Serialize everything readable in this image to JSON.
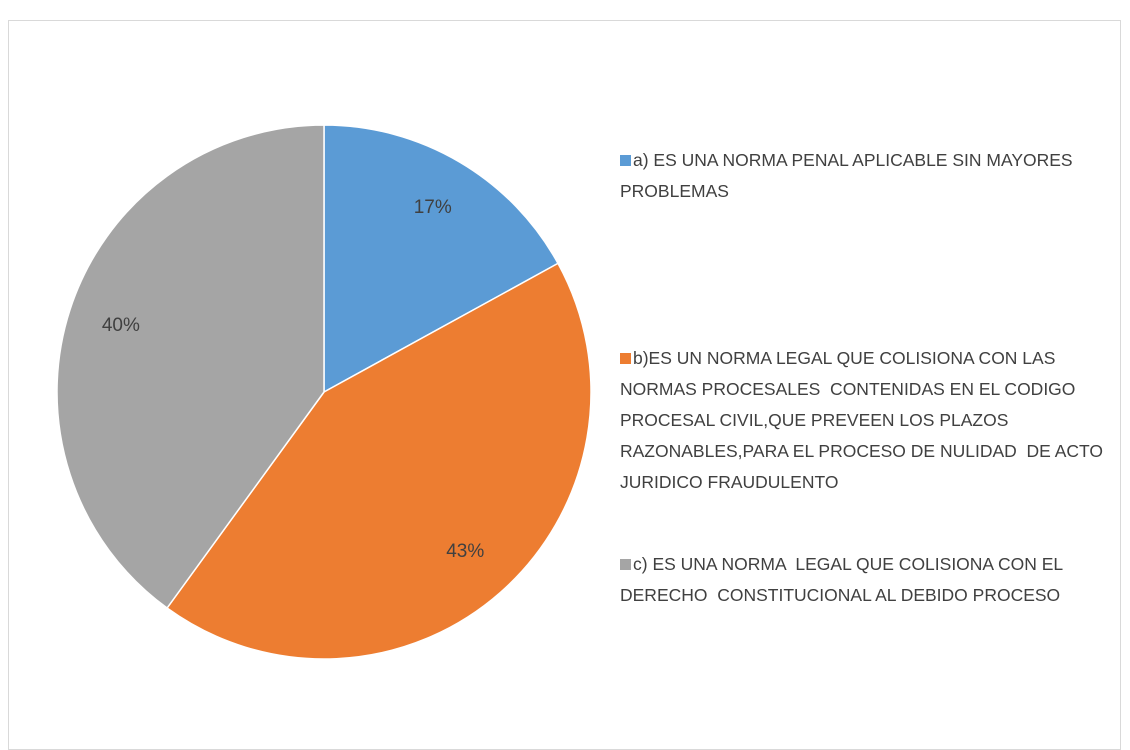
{
  "chart_data": {
    "type": "pie",
    "categories": [
      "a) ES UNA NORMA PENAL APLICABLE SIN MAYORES PROBLEMAS",
      "b)ES UN NORMA LEGAL QUE COLISIONA CON LAS NORMAS PROCESALES  CONTENIDAS EN EL CODIGO PROCESAL CIVIL,QUE PREVEEN LOS PLAZOS RAZONABLES,PARA EL PROCESO DE NULIDAD  DE ACTO JURIDICO FRAUDULENTO",
      "c) ES UNA NORMA  LEGAL QUE COLISIONA CON EL DERECHO  CONSTITUCIONAL AL DEBIDO PROCESO"
    ],
    "values": [
      17,
      43,
      40
    ],
    "value_labels": [
      "17%",
      "43%",
      "40%"
    ],
    "colors": [
      "#5b9bd5",
      "#ed7d31",
      "#a5a5a5"
    ]
  }
}
